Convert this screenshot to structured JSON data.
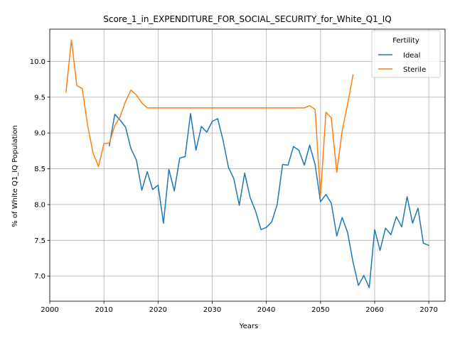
{
  "chart_data": {
    "type": "line",
    "title": "Score_1_in_EXPENDITURE_FOR_SOCIAL_SECURITY_for_White_Q1_IQ",
    "xlabel": "Years",
    "ylabel": "% of White Q1_IQ Population",
    "xlim": [
      2000,
      2073
    ],
    "ylim": [
      6.65,
      10.45
    ],
    "xticks": [
      2000,
      2010,
      2020,
      2030,
      2040,
      2050,
      2060,
      2070
    ],
    "yticks": [
      7.0,
      7.5,
      8.0,
      8.5,
      9.0,
      9.5,
      10.0
    ],
    "xtick_labels": [
      "2000",
      "2010",
      "2020",
      "2030",
      "2040",
      "2050",
      "2060",
      "2070"
    ],
    "ytick_labels": [
      "7.0",
      "7.5",
      "8.0",
      "8.5",
      "9.0",
      "9.5",
      "10.0"
    ],
    "grid": true,
    "legend": {
      "title": "Fertility",
      "placement": "top-right"
    },
    "series": [
      {
        "name": "Ideal",
        "color": "#1f77b4",
        "x": [
          2011,
          2012,
          2013,
          2014,
          2015,
          2016,
          2017,
          2018,
          2019,
          2020,
          2021,
          2022,
          2023,
          2024,
          2025,
          2026,
          2027,
          2028,
          2029,
          2030,
          2031,
          2032,
          2033,
          2034,
          2035,
          2036,
          2037,
          2038,
          2039,
          2040,
          2041,
          2042,
          2043,
          2044,
          2045,
          2046,
          2047,
          2048,
          2049,
          2050,
          2051,
          2052,
          2053,
          2054,
          2055,
          2056,
          2057,
          2058,
          2059,
          2060,
          2061,
          2062,
          2063,
          2064,
          2065,
          2066,
          2067,
          2068,
          2069,
          2070
        ],
        "y": [
          8.82,
          9.26,
          9.18,
          9.08,
          8.78,
          8.62,
          8.2,
          8.46,
          8.21,
          8.27,
          7.74,
          8.49,
          8.19,
          8.65,
          8.67,
          9.27,
          8.76,
          9.09,
          9.01,
          9.16,
          9.2,
          8.9,
          8.52,
          8.36,
          7.99,
          8.44,
          8.1,
          7.91,
          7.65,
          7.68,
          7.76,
          8.0,
          8.56,
          8.55,
          8.81,
          8.76,
          8.55,
          8.83,
          8.56,
          8.04,
          8.14,
          8.02,
          7.56,
          7.82,
          7.61,
          7.2,
          6.87,
          7.01,
          6.84,
          7.65,
          7.36,
          7.67,
          7.58,
          7.83,
          7.69,
          8.11,
          7.74,
          7.95,
          7.46,
          7.43
        ]
      },
      {
        "name": "Sterile",
        "color": "#ff7f0e",
        "x": [
          2003,
          2004,
          2005,
          2006,
          2007,
          2008,
          2009,
          2010,
          2011,
          2012,
          2013,
          2014,
          2015,
          2016,
          2017,
          2018,
          2019,
          2020,
          2021,
          2022,
          2023,
          2024,
          2025,
          2026,
          2027,
          2028,
          2029,
          2030,
          2031,
          2032,
          2033,
          2034,
          2035,
          2036,
          2037,
          2038,
          2039,
          2040,
          2041,
          2042,
          2043,
          2044,
          2045,
          2046,
          2047,
          2048,
          2049,
          2050,
          2051,
          2052,
          2053,
          2054,
          2055,
          2056
        ],
        "y": [
          9.57,
          10.3,
          9.66,
          9.62,
          9.1,
          8.72,
          8.53,
          8.85,
          8.86,
          9.1,
          9.23,
          9.44,
          9.6,
          9.53,
          9.42,
          9.35,
          9.35,
          9.35,
          9.35,
          9.35,
          9.35,
          9.35,
          9.35,
          9.35,
          9.35,
          9.35,
          9.35,
          9.35,
          9.35,
          9.35,
          9.35,
          9.35,
          9.35,
          9.35,
          9.35,
          9.35,
          9.35,
          9.35,
          9.35,
          9.35,
          9.35,
          9.35,
          9.35,
          9.35,
          9.35,
          9.38,
          9.33,
          8.12,
          9.29,
          9.21,
          8.45,
          9.03,
          9.4,
          9.81
        ]
      }
    ]
  }
}
